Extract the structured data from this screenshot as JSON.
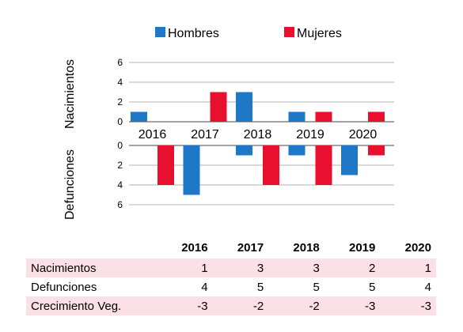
{
  "chart_data": {
    "type": "bar",
    "categories": [
      "2016",
      "2017",
      "2018",
      "2019",
      "2020"
    ],
    "legend": {
      "placement": "top",
      "items": [
        "Hombres",
        "Mujeres"
      ]
    },
    "colors": {
      "Hombres": "#1f77c8",
      "Mujeres": "#e8102e"
    },
    "upper_panel": {
      "ylabel": "Nacimientos",
      "ylim": [
        0,
        6
      ],
      "yticks": [
        "6",
        "4",
        "2",
        "0"
      ],
      "series": [
        {
          "name": "Hombres",
          "values": [
            1,
            0,
            3,
            1,
            0
          ]
        },
        {
          "name": "Mujeres",
          "values": [
            0,
            3,
            0,
            1,
            1
          ]
        }
      ]
    },
    "lower_panel": {
      "ylabel": "Defunciones",
      "ylim": [
        0,
        6
      ],
      "yticks": [
        "0",
        "2",
        "4",
        "6"
      ],
      "series": [
        {
          "name": "Hombres",
          "values": [
            0,
            5,
            1,
            1,
            3
          ]
        },
        {
          "name": "Mujeres",
          "values": [
            4,
            0,
            4,
            4,
            1
          ]
        }
      ]
    },
    "grid": true
  },
  "table": {
    "headers": [
      "",
      "2016",
      "2017",
      "2018",
      "2019",
      "2020"
    ],
    "rows": [
      {
        "label": "Nacimientos",
        "values": [
          "1",
          "3",
          "3",
          "2",
          "1"
        ]
      },
      {
        "label": "Defunciones",
        "values": [
          "4",
          "5",
          "5",
          "5",
          "4"
        ]
      },
      {
        "label": "Crecimiento Veg.",
        "values": [
          "-3",
          "-2",
          "-2",
          "-3",
          "-3"
        ]
      }
    ]
  }
}
